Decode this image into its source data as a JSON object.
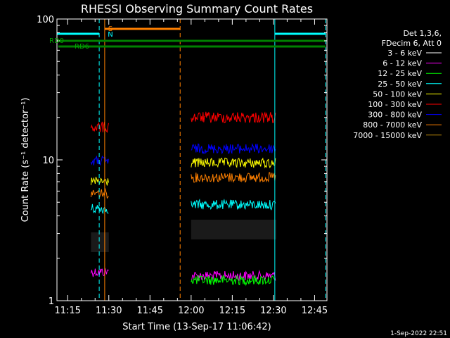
{
  "chart_data": {
    "type": "line",
    "title": "RHESSI Observing Summary Count Rates",
    "xlabel": "Start Time (13-Sep-17 11:06:42)",
    "ylabel": "Count Rate (s⁻¹ detector⁻¹)",
    "yscale": "log",
    "ylim": [
      1,
      100
    ],
    "xlim_minutes": [
      11.1,
      109.5
    ],
    "x_ticks": [
      {
        "label": "11:15",
        "minutes": 15
      },
      {
        "label": "11:30",
        "minutes": 30
      },
      {
        "label": "11:45",
        "minutes": 45
      },
      {
        "label": "12:00",
        "minutes": 60
      },
      {
        "label": "12:15",
        "minutes": 75
      },
      {
        "label": "12:30",
        "minutes": 90
      },
      {
        "label": "12:45",
        "minutes": 105
      }
    ],
    "y_ticks": [
      {
        "label": "1",
        "value": 1
      },
      {
        "label": "10",
        "value": 10
      },
      {
        "label": "100",
        "value": 100
      }
    ],
    "legend_header": [
      "Det 1,3,6,",
      "FDecim 6, Att 0"
    ],
    "series": [
      {
        "name": "3 - 6 keV",
        "color": "#000000",
        "segments": [
          {
            "start": 23.5,
            "end": 30.0,
            "value": 2.6
          },
          {
            "start": 60.0,
            "end": 91.0,
            "value": 3.2
          }
        ]
      },
      {
        "name": "6 - 12 keV",
        "color": "#ff00ff",
        "segments": [
          {
            "start": 23.5,
            "end": 30.0,
            "value": 1.6
          },
          {
            "start": 60.0,
            "end": 91.0,
            "value": 1.5
          }
        ]
      },
      {
        "name": "12 - 25 keV",
        "color": "#00ff00",
        "segments": [
          {
            "start": 60.0,
            "end": 91.0,
            "value": 1.4
          }
        ]
      },
      {
        "name": "25 - 50 keV",
        "color": "#00ffff",
        "segments": [
          {
            "start": 23.5,
            "end": 30.0,
            "value": 4.5
          },
          {
            "start": 60.0,
            "end": 91.0,
            "value": 4.8
          }
        ]
      },
      {
        "name": "50 - 100 keV",
        "color": "#ffff00",
        "segments": [
          {
            "start": 23.5,
            "end": 30.0,
            "value": 7.0
          },
          {
            "start": 60.0,
            "end": 91.0,
            "value": 9.5
          }
        ]
      },
      {
        "name": "100 - 300 keV",
        "color": "#ff0000",
        "segments": [
          {
            "start": 23.5,
            "end": 30.0,
            "value": 17.0
          },
          {
            "start": 60.0,
            "end": 91.0,
            "value": 20.0
          }
        ]
      },
      {
        "name": "300 - 800 keV",
        "color": "#0000ff",
        "segments": [
          {
            "start": 23.5,
            "end": 30.0,
            "value": 9.8
          },
          {
            "start": 60.0,
            "end": 91.0,
            "value": 12.0
          }
        ]
      },
      {
        "name": "800 - 7000 keV",
        "color": "#ff8000",
        "segments": [
          {
            "start": 23.5,
            "end": 30.0,
            "value": 5.8
          },
          {
            "start": 60.0,
            "end": 91.0,
            "value": 7.5
          }
        ]
      },
      {
        "name": "7000 - 15000 keV",
        "color": "#b8860b",
        "segments": []
      }
    ],
    "annotations": [
      {
        "text": "S",
        "color": "#ff8000"
      },
      {
        "text": "N",
        "color": "#00ffff"
      },
      {
        "text": "RD0",
        "color": "#008000"
      },
      {
        "text": "RD6",
        "color": "#008000"
      }
    ],
    "night_intervals": [
      [
        11.1,
        26.5
      ],
      [
        90.5,
        109.0
      ]
    ],
    "saa_intervals": [
      [
        28.5,
        56.0
      ]
    ],
    "decimation_intervals": [
      {
        "label": "RD0",
        "start": 11.1,
        "end": 109.0
      },
      {
        "label": "RD6",
        "start": 11.1,
        "end": 109.0
      }
    ],
    "footer_date": "1-Sep-2022 22:51"
  },
  "colors": {
    "axis": "#ffffff",
    "night": "#00ffff",
    "saa": "#ff8000",
    "decim": "#008000",
    "background": "#000000"
  }
}
